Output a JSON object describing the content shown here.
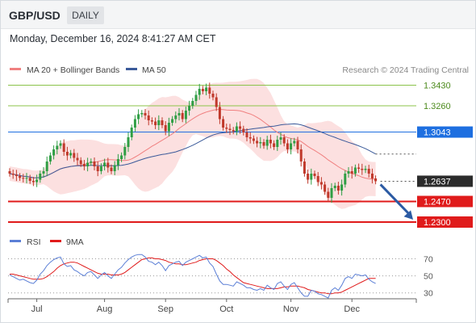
{
  "header": {
    "symbol": "GBP/USD",
    "timeframe": "DAILY"
  },
  "timestamp": "Monday, December 16, 2024 8:41:27 AM CET",
  "legend": {
    "ma20_label": "MA 20 + Bollinger Bands",
    "ma50_label": "MA 50",
    "credit": "Research © 2024 Trading Central",
    "rsi_label": "RSI",
    "rsi_ma_label": "9MA"
  },
  "colors": {
    "ma20": "#f08080",
    "ma50": "#3b5a9a",
    "band_fill": "#fbd5d5",
    "bull": "#2f9e44",
    "bear": "#c0392b",
    "resistance": "#8bc34a",
    "pivot": "#1e6fe0",
    "support": "#e01b1b",
    "arrow": "#2b5aa3",
    "rsi": "#5b7fd6",
    "rsi_ma": "#e01b1b"
  },
  "chart_data": [
    {
      "type": "candlestick",
      "title": "",
      "ylim": [
        1.22,
        1.35
      ],
      "x_tick_labels": [
        "Jul",
        "Aug",
        "Sep",
        "Oct",
        "Nov",
        "Dec"
      ],
      "level_lines": [
        {
          "value": 1.343,
          "label": "1.3430",
          "kind": "resistance"
        },
        {
          "value": 1.326,
          "label": "1.3260",
          "kind": "resistance"
        },
        {
          "value": 1.3043,
          "label": "1.3043",
          "kind": "pivot"
        },
        {
          "value": 1.2637,
          "label": "1.2637",
          "kind": "last"
        },
        {
          "value": 1.247,
          "label": "1.2470",
          "kind": "support"
        },
        {
          "value": 1.23,
          "label": "1.2300",
          "kind": "support"
        }
      ],
      "close_series": [
        1.27,
        1.269,
        1.268,
        1.2665,
        1.266,
        1.2665,
        1.264,
        1.263,
        1.265,
        1.27,
        1.272,
        1.28,
        1.285,
        1.29,
        1.293,
        1.295,
        1.288,
        1.285,
        1.287,
        1.283,
        1.281,
        1.278,
        1.276,
        1.279,
        1.28,
        1.276,
        1.272,
        1.276,
        1.279,
        1.275,
        1.272,
        1.277,
        1.282,
        1.285,
        1.292,
        1.3,
        1.308,
        1.315,
        1.319,
        1.32,
        1.318,
        1.314,
        1.313,
        1.31,
        1.314,
        1.31,
        1.305,
        1.312,
        1.315,
        1.318,
        1.32,
        1.315,
        1.322,
        1.326,
        1.33,
        1.335,
        1.34,
        1.338,
        1.341,
        1.336,
        1.333,
        1.325,
        1.315,
        1.308,
        1.307,
        1.306,
        1.305,
        1.309,
        1.307,
        1.304,
        1.3,
        1.299,
        1.297,
        1.295,
        1.296,
        1.293,
        1.298,
        1.295,
        1.292,
        1.298,
        1.3,
        1.295,
        1.29,
        1.295,
        1.297,
        1.29,
        1.28,
        1.27,
        1.265,
        1.27,
        1.268,
        1.263,
        1.261,
        1.255,
        1.25,
        1.258,
        1.26,
        1.256,
        1.261,
        1.27,
        1.272,
        1.27,
        1.275,
        1.274,
        1.273,
        1.274,
        1.27,
        1.266,
        1.2637
      ],
      "forecast": {
        "from": 1.2637,
        "to": 1.23
      }
    },
    {
      "type": "line",
      "title": "",
      "ylim": [
        25,
        78
      ],
      "y_ticks": [
        70,
        50,
        30
      ],
      "series": [
        {
          "name": "RSI",
          "values": [
            51,
            49,
            47,
            45,
            46,
            44,
            42,
            41,
            45,
            52,
            56,
            62,
            66,
            69,
            71,
            72,
            64,
            61,
            62,
            57,
            55,
            52,
            50,
            54,
            55,
            51,
            47,
            51,
            54,
            50,
            47,
            52,
            57,
            60,
            65,
            69,
            72,
            74,
            75,
            75,
            72,
            67,
            66,
            63,
            66,
            62,
            56,
            62,
            64,
            66,
            67,
            62,
            66,
            68,
            70,
            72,
            74,
            71,
            72,
            65,
            61,
            52,
            44,
            40,
            40,
            39,
            38,
            43,
            41,
            39,
            36,
            36,
            34,
            33,
            35,
            33,
            39,
            36,
            34,
            41,
            43,
            38,
            34,
            40,
            42,
            36,
            30,
            26,
            26,
            33,
            32,
            29,
            28,
            26,
            24,
            33,
            36,
            33,
            39,
            47,
            49,
            47,
            52,
            51,
            50,
            51,
            46,
            43,
            41
          ]
        },
        {
          "name": "9MA",
          "values": [
            52,
            52,
            51,
            50,
            49,
            48,
            47,
            46,
            46,
            46,
            47,
            49,
            52,
            55,
            59,
            62,
            64,
            65,
            66,
            66,
            65,
            63,
            61,
            59,
            57,
            55,
            53,
            52,
            52,
            52,
            51,
            51,
            51,
            52,
            54,
            57,
            60,
            63,
            66,
            69,
            70,
            71,
            71,
            70,
            70,
            69,
            68,
            66,
            65,
            64,
            64,
            63,
            63,
            64,
            65,
            66,
            68,
            69,
            70,
            70,
            70,
            68,
            65,
            62,
            58,
            55,
            51,
            48,
            45,
            42,
            41,
            40,
            39,
            38,
            37,
            36,
            35,
            35,
            35,
            35,
            36,
            37,
            37,
            38,
            38,
            38,
            37,
            36,
            34,
            33,
            32,
            31,
            30,
            30,
            29,
            29,
            30,
            30,
            31,
            33,
            35,
            37,
            39,
            41,
            43,
            45,
            47,
            47,
            47
          ]
        }
      ]
    }
  ]
}
